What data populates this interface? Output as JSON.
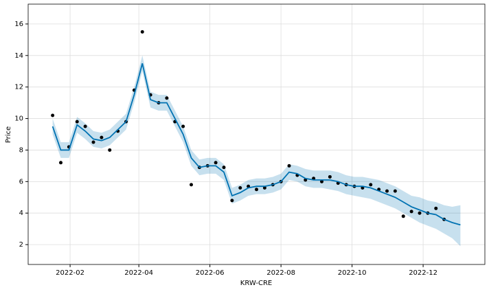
{
  "chart_data": {
    "type": "forecast",
    "x_label": "KRW-CRE",
    "y_label": "Price",
    "x": [
      "2022-01-17",
      "2022-01-24",
      "2022-01-31",
      "2022-02-07",
      "2022-02-14",
      "2022-02-21",
      "2022-02-28",
      "2022-03-07",
      "2022-03-14",
      "2022-03-21",
      "2022-03-28",
      "2022-04-04",
      "2022-04-11",
      "2022-04-18",
      "2022-04-25",
      "2022-05-02",
      "2022-05-09",
      "2022-05-16",
      "2022-05-23",
      "2022-05-30",
      "2022-06-06",
      "2022-06-13",
      "2022-06-20",
      "2022-06-27",
      "2022-07-04",
      "2022-07-11",
      "2022-07-18",
      "2022-07-25",
      "2022-08-01",
      "2022-08-08",
      "2022-08-15",
      "2022-08-22",
      "2022-08-29",
      "2022-09-05",
      "2022-09-12",
      "2022-09-19",
      "2022-09-26",
      "2022-10-03",
      "2022-10-10",
      "2022-10-17",
      "2022-10-24",
      "2022-10-31",
      "2022-11-07",
      "2022-11-14",
      "2022-11-21",
      "2022-11-28",
      "2022-12-05",
      "2022-12-12",
      "2022-12-19",
      "2022-12-26",
      "2023-01-02"
    ],
    "values": [
      10.2,
      7.2,
      8.2,
      9.8,
      9.5,
      8.5,
      8.8,
      8.0,
      9.2,
      9.8,
      11.8,
      15.5,
      11.5,
      11.0,
      11.3,
      9.8,
      9.5,
      5.8,
      6.9,
      7.0,
      7.2,
      6.9,
      4.8,
      5.6,
      5.7,
      5.5,
      5.6,
      5.8,
      6.0,
      7.0,
      6.4,
      6.1,
      6.2,
      6.0,
      6.3,
      5.9,
      5.8,
      5.7,
      5.6,
      5.8,
      5.5,
      5.4,
      5.4,
      3.8,
      4.1,
      4.0,
      4.0,
      4.3,
      3.6,
      null,
      null
    ],
    "forecast": [
      9.5,
      8.0,
      8.0,
      9.6,
      9.2,
      8.7,
      8.6,
      8.8,
      9.3,
      9.8,
      11.5,
      13.5,
      11.2,
      11.0,
      11.0,
      10.0,
      9.0,
      7.5,
      6.9,
      7.0,
      7.0,
      6.6,
      5.1,
      5.3,
      5.6,
      5.7,
      5.7,
      5.8,
      6.0,
      6.6,
      6.5,
      6.2,
      6.1,
      6.1,
      6.1,
      6.0,
      5.8,
      5.7,
      5.7,
      5.6,
      5.4,
      5.2,
      5.0,
      4.7,
      4.4,
      4.2,
      4.0,
      3.9,
      3.6,
      3.4,
      3.25
    ],
    "lower": [
      9.0,
      7.5,
      7.5,
      9.1,
      8.7,
      8.2,
      8.1,
      8.3,
      8.8,
      9.3,
      11.0,
      13.0,
      10.7,
      10.5,
      10.5,
      9.5,
      8.5,
      7.0,
      6.4,
      6.5,
      6.5,
      6.1,
      4.6,
      4.8,
      5.1,
      5.2,
      5.2,
      5.3,
      5.5,
      6.1,
      6.0,
      5.7,
      5.6,
      5.6,
      5.5,
      5.4,
      5.2,
      5.1,
      5.0,
      4.9,
      4.7,
      4.5,
      4.3,
      4.0,
      3.7,
      3.4,
      3.2,
      3.0,
      2.7,
      2.4,
      1.9
    ],
    "upper": [
      10.0,
      8.5,
      8.5,
      10.1,
      9.7,
      9.2,
      9.1,
      9.3,
      9.8,
      10.3,
      12.0,
      14.0,
      11.7,
      11.5,
      11.5,
      10.5,
      9.5,
      8.0,
      7.4,
      7.5,
      7.5,
      7.1,
      5.6,
      5.8,
      6.1,
      6.2,
      6.2,
      6.3,
      6.5,
      7.1,
      7.0,
      6.8,
      6.7,
      6.7,
      6.7,
      6.6,
      6.4,
      6.3,
      6.3,
      6.2,
      6.1,
      5.9,
      5.7,
      5.4,
      5.1,
      5.0,
      4.8,
      4.7,
      4.5,
      4.4,
      4.5
    ],
    "point_color": "#000000",
    "line_color": "#0072b2",
    "band_color": "#0072b2",
    "xlim": [
      "2021-12-27",
      "2023-01-23"
    ],
    "xticks": [
      {
        "value": "2022-02-01",
        "label": "2022-02"
      },
      {
        "value": "2022-04-01",
        "label": "2022-04"
      },
      {
        "value": "2022-06-01",
        "label": "2022-06"
      },
      {
        "value": "2022-08-01",
        "label": "2022-08"
      },
      {
        "value": "2022-10-01",
        "label": "2022-10"
      },
      {
        "value": "2022-12-01",
        "label": "2022-12"
      }
    ],
    "ylim": [
      0.74,
      17.26
    ],
    "yticks": [
      2,
      4,
      6,
      8,
      10,
      12,
      14,
      16
    ],
    "grid": true
  }
}
